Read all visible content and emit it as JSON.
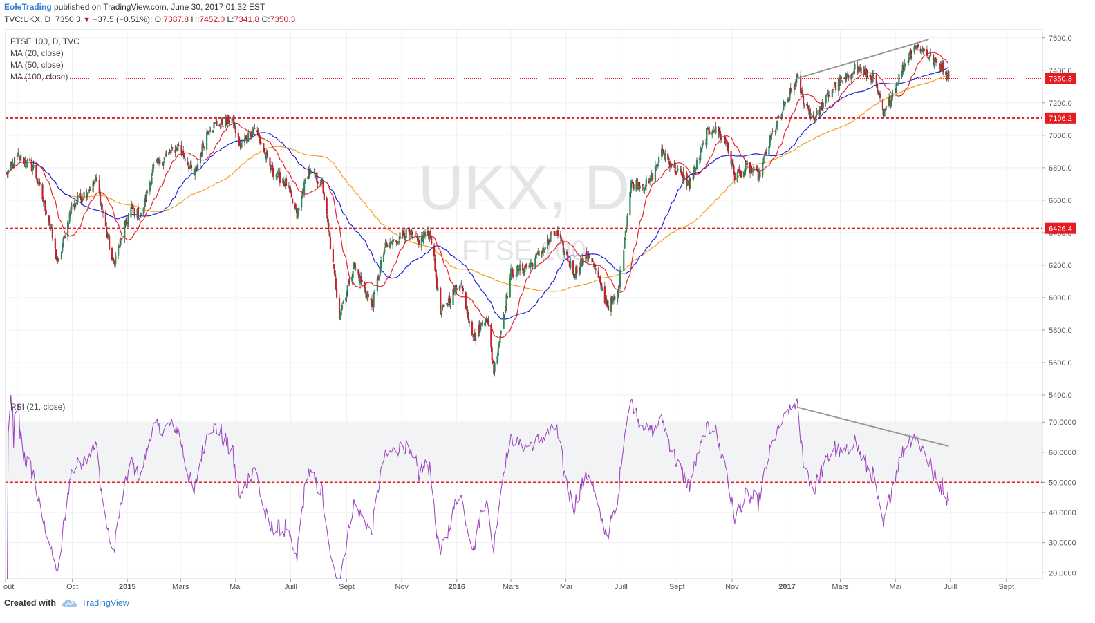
{
  "header": {
    "author": "EoleTrading",
    "published": "published on TradingView.com, June 30, 2017 01:32 EST",
    "symbol": "TVC:UKX, D",
    "last": "7350.3",
    "change": "−37.5 (−0.51%):",
    "o_label": "O:",
    "o_val": "7387.8",
    "h_label": "H:",
    "h_val": "7452.0",
    "l_label": "L:",
    "l_val": "7341.8",
    "c_label": "C:",
    "c_val": "7350.3"
  },
  "legend": {
    "main_title": "FTSE 100, D, TVC",
    "ma20": "MA (20, close)",
    "ma50": "MA (50, close)",
    "ma100": "MA (100, close)",
    "rsi_title": "RSI (21, close)"
  },
  "watermark": {
    "symbol": "UKX, D",
    "name": "FTSE 100"
  },
  "footer": {
    "created": "Created with",
    "brand": "TradingView"
  },
  "colors": {
    "up": "#2e8b57",
    "down": "#c8202a",
    "ma20": "#e8222a",
    "ma50": "#1b20d8",
    "ma100": "#f0a020",
    "rsi": "#9b3fc0",
    "hline": "#e51c23",
    "trend": "#999999"
  },
  "chart_data": [
    {
      "type": "candlestick",
      "title": "FTSE 100, D, TVC",
      "ylim": [
        5400,
        7650
      ],
      "yticks": [
        5400,
        5600,
        5800,
        6000,
        6200,
        6400,
        6600,
        6800,
        7000,
        7200,
        7400,
        7600
      ],
      "ytick_labels": [
        "5400.0",
        "5600.0",
        "5800.0",
        "6000.0",
        "6200.0",
        "6400.0",
        "6600.0",
        "6800.0",
        "7000.0",
        "7200.0",
        "7400.0",
        "7600.0"
      ],
      "xtick_labels": [
        "oût",
        "Oct",
        "2015",
        "Mars",
        "Mai",
        "Juill",
        "Sept",
        "Nov",
        "2016",
        "Mars",
        "Mai",
        "Juill",
        "Sept",
        "Nov",
        "2017",
        "Mars",
        "Mai",
        "Juill",
        "Sept"
      ],
      "price_anchors": [
        [
          "2014-08-20",
          6760
        ],
        [
          "2014-09-02",
          6870
        ],
        [
          "2014-09-19",
          6800
        ],
        [
          "2014-10-06",
          6480
        ],
        [
          "2014-10-16",
          6200
        ],
        [
          "2014-10-31",
          6560
        ],
        [
          "2014-11-28",
          6720
        ],
        [
          "2014-12-16",
          6200
        ],
        [
          "2015-01-05",
          6550
        ],
        [
          "2015-01-16",
          6500
        ],
        [
          "2015-01-30",
          6800
        ],
        [
          "2015-02-27",
          6940
        ],
        [
          "2015-03-16",
          6750
        ],
        [
          "2015-04-01",
          7050
        ],
        [
          "2015-04-27",
          7100
        ],
        [
          "2015-05-06",
          6930
        ],
        [
          "2015-05-22",
          7050
        ],
        [
          "2015-06-08",
          6800
        ],
        [
          "2015-06-26",
          6700
        ],
        [
          "2015-07-08",
          6500
        ],
        [
          "2015-07-20",
          6780
        ],
        [
          "2015-08-05",
          6700
        ],
        [
          "2015-08-24",
          5900
        ],
        [
          "2015-09-09",
          6200
        ],
        [
          "2015-09-29",
          5950
        ],
        [
          "2015-10-13",
          6300
        ],
        [
          "2015-11-04",
          6400
        ],
        [
          "2015-11-20",
          6350
        ],
        [
          "2015-12-03",
          6400
        ],
        [
          "2015-12-14",
          5900
        ],
        [
          "2016-01-05",
          6100
        ],
        [
          "2016-01-20",
          5750
        ],
        [
          "2016-02-03",
          5900
        ],
        [
          "2016-02-11",
          5550
        ],
        [
          "2016-03-01",
          6150
        ],
        [
          "2016-03-22",
          6200
        ],
        [
          "2016-04-20",
          6400
        ],
        [
          "2016-05-10",
          6150
        ],
        [
          "2016-05-27",
          6270
        ],
        [
          "2016-06-16",
          5950
        ],
        [
          "2016-06-27",
          6000
        ],
        [
          "2016-07-12",
          6700
        ],
        [
          "2016-08-01",
          6700
        ],
        [
          "2016-08-16",
          6900
        ],
        [
          "2016-08-31",
          6780
        ],
        [
          "2016-09-15",
          6700
        ],
        [
          "2016-10-04",
          7000
        ],
        [
          "2016-10-11",
          7050
        ],
        [
          "2016-10-26",
          6950
        ],
        [
          "2016-11-04",
          6750
        ],
        [
          "2016-11-18",
          6800
        ],
        [
          "2016-12-01",
          6750
        ],
        [
          "2016-12-15",
          7000
        ],
        [
          "2017-01-12",
          7350
        ],
        [
          "2017-01-20",
          7200
        ],
        [
          "2017-01-31",
          7100
        ],
        [
          "2017-02-22",
          7300
        ],
        [
          "2017-03-09",
          7350
        ],
        [
          "2017-03-16",
          7420
        ],
        [
          "2017-04-07",
          7350
        ],
        [
          "2017-04-18",
          7120
        ],
        [
          "2017-04-27",
          7250
        ],
        [
          "2017-05-12",
          7450
        ],
        [
          "2017-05-22",
          7550
        ],
        [
          "2017-06-02",
          7520
        ],
        [
          "2017-06-14",
          7450
        ],
        [
          "2017-06-23",
          7420
        ],
        [
          "2017-06-29",
          7350.3
        ]
      ],
      "horizontal_levels": [
        7350.3,
        7106.2,
        6426.4
      ],
      "level_labels": [
        "7350.3",
        "7106.2",
        "6426.4"
      ],
      "trendline": [
        [
          "2017-01-12",
          7350
        ],
        [
          "2017-06-07",
          7590
        ]
      ],
      "series": [
        {
          "name": "MA (20, close)",
          "period": 20
        },
        {
          "name": "MA (50, close)",
          "period": 50
        },
        {
          "name": "MA (100, close)",
          "period": 100
        }
      ]
    },
    {
      "type": "line",
      "title": "RSI (21, close)",
      "ylim": [
        18,
        79
      ],
      "yticks": [
        20,
        30,
        40,
        50,
        60,
        70
      ],
      "ytick_labels": [
        "20.0000",
        "30.0000",
        "40.0000",
        "50.0000",
        "60.0000",
        "70.0000"
      ],
      "band": [
        50,
        70
      ],
      "level": 50,
      "trendline": [
        [
          "2017-01-12",
          75
        ],
        [
          "2017-06-29",
          62
        ]
      ]
    }
  ]
}
